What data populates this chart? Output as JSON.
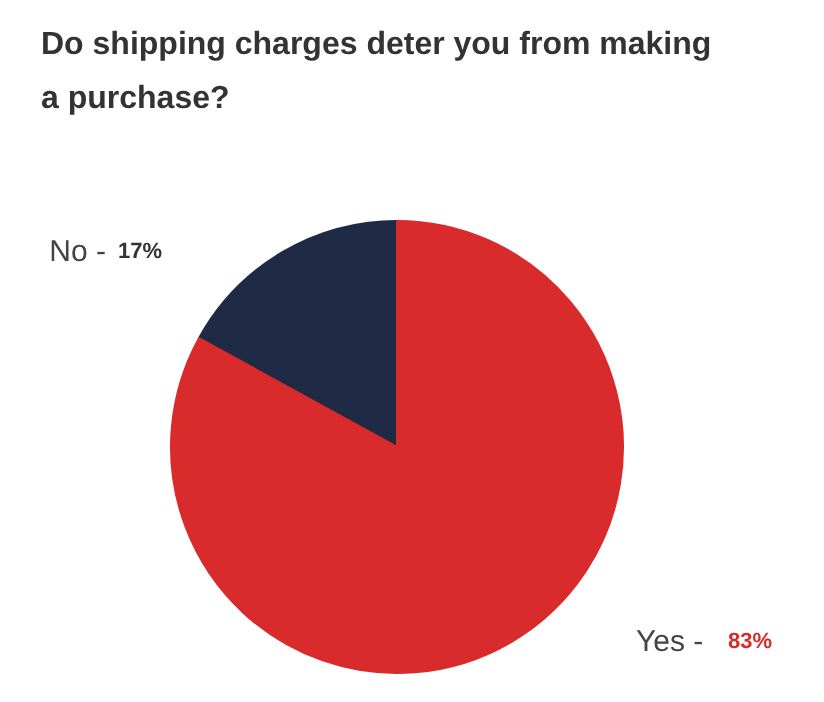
{
  "chart_data": {
    "type": "pie",
    "title": "Do shipping charges deter you from making a purchase?",
    "categories": [
      "No -",
      "Yes -"
    ],
    "values": [
      17,
      83
    ],
    "value_labels": [
      "17%",
      "83%"
    ],
    "colors": [
      "#1f2b45",
      "#d92b2b"
    ]
  }
}
